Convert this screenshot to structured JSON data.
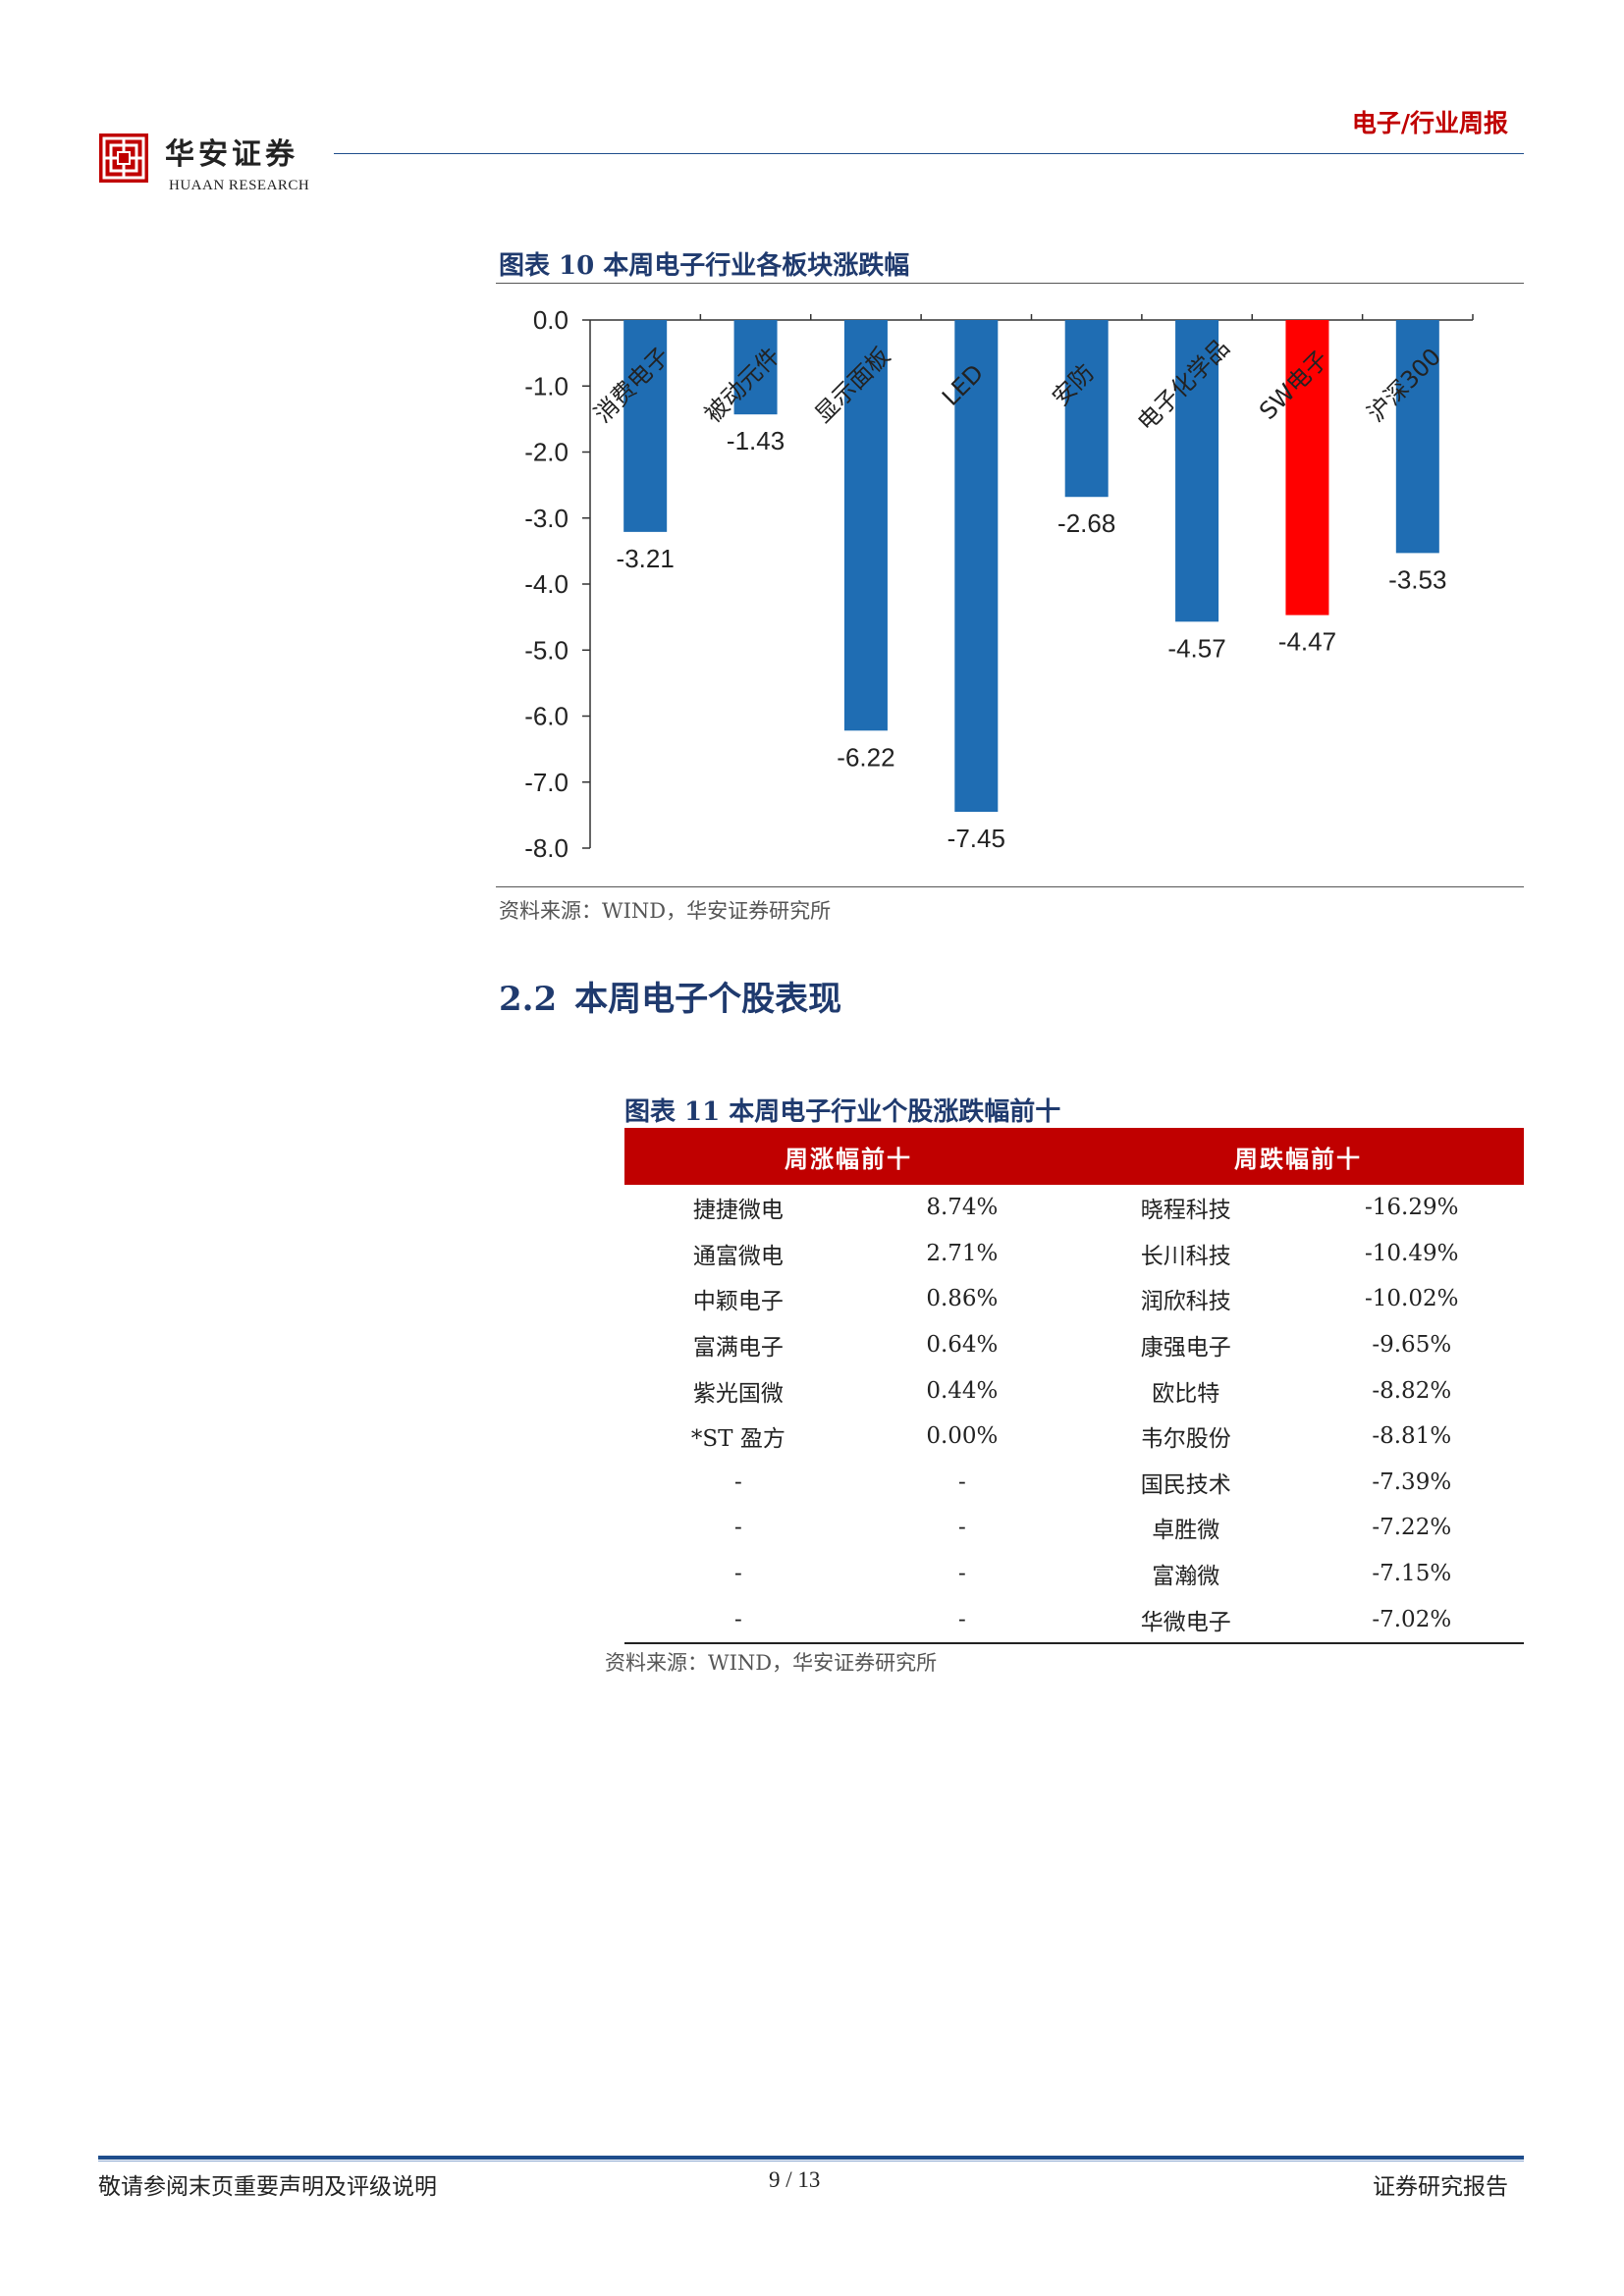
{
  "header": {
    "logo_cn": "华安证券",
    "logo_en": "HUAAN RESEARCH",
    "report_type": "电子/行业周报"
  },
  "figure10": {
    "title": "图表 10 本周电子行业各板块涨跌幅",
    "source": "资料来源：WIND，华安证券研究所"
  },
  "chart_data": {
    "type": "bar",
    "title": "图表 10 本周电子行业各板块涨跌幅",
    "categories": [
      "消费电子",
      "被动元件",
      "显示面板",
      "LED",
      "安防",
      "电子化学品",
      "SW电子",
      "沪深300"
    ],
    "values": [
      -3.21,
      -1.43,
      -6.22,
      -7.45,
      -2.68,
      -4.57,
      -4.47,
      -3.53
    ],
    "value_labels": [
      "-3.21",
      "-1.43",
      "-6.22",
      "-7.45",
      "-2.68",
      "-4.57",
      "-4.47",
      "-3.53"
    ],
    "ylim": [
      -8.0,
      0.0
    ],
    "yticks": [
      0.0,
      -1.0,
      -2.0,
      -3.0,
      -4.0,
      -5.0,
      -6.0,
      -7.0,
      -8.0
    ],
    "ytick_labels": [
      "0.0",
      "-1.0",
      "-2.0",
      "-3.0",
      "-4.0",
      "-5.0",
      "-6.0",
      "-7.0",
      "-8.0"
    ],
    "grid": false,
    "colors": [
      "#1f6db3",
      "#1f6db3",
      "#1f6db3",
      "#1f6db3",
      "#1f6db3",
      "#1f6db3",
      "#ff0000",
      "#1f6db3"
    ]
  },
  "section": {
    "number": "2.2",
    "title": "本周电子个股表现"
  },
  "figure11": {
    "title": "图表 11 本周电子行业个股涨跌幅前十",
    "headers": {
      "gainers": "周涨幅前十",
      "losers": "周跌幅前十"
    },
    "rows": [
      {
        "g_name": "捷捷微电",
        "g_val": "8.74%",
        "l_name": "晓程科技",
        "l_val": "-16.29%"
      },
      {
        "g_name": "通富微电",
        "g_val": "2.71%",
        "l_name": "长川科技",
        "l_val": "-10.49%"
      },
      {
        "g_name": "中颖电子",
        "g_val": "0.86%",
        "l_name": "润欣科技",
        "l_val": "-10.02%"
      },
      {
        "g_name": "富满电子",
        "g_val": "0.64%",
        "l_name": "康强电子",
        "l_val": "-9.65%"
      },
      {
        "g_name": "紫光国微",
        "g_val": "0.44%",
        "l_name": "欧比特",
        "l_val": "-8.82%"
      },
      {
        "g_name": "*ST 盈方",
        "g_val": "0.00%",
        "l_name": "韦尔股份",
        "l_val": "-8.81%"
      },
      {
        "g_name": "-",
        "g_val": "-",
        "l_name": "国民技术",
        "l_val": "-7.39%"
      },
      {
        "g_name": "-",
        "g_val": "-",
        "l_name": "卓胜微",
        "l_val": "-7.22%"
      },
      {
        "g_name": "-",
        "g_val": "-",
        "l_name": "富瀚微",
        "l_val": "-7.15%"
      },
      {
        "g_name": "-",
        "g_val": "-",
        "l_name": "华微电子",
        "l_val": "-7.02%"
      }
    ],
    "source": "资料来源：WIND，华安证券研究所"
  },
  "footer": {
    "left": "敬请参阅末页重要声明及评级说明",
    "page": "9 / 13",
    "right": "证券研究报告"
  },
  "colors": {
    "brand_red": "#c00000",
    "navy": "#1f3a6e",
    "bar_blue": "#1f6db3",
    "bar_red": "#ff0000"
  }
}
